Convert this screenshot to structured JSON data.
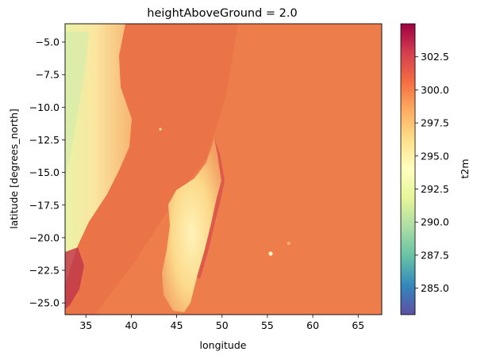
{
  "chart_data": {
    "type": "heatmap",
    "title": "heightAboveGround = 2.0",
    "xlabel": "longitude",
    "ylabel": "latitude [degrees_north]",
    "xlim": [
      32.7,
      67.6
    ],
    "ylim": [
      -25.9,
      -3.6
    ],
    "x_ticks": [
      35,
      40,
      45,
      50,
      55,
      60,
      65
    ],
    "y_ticks": [
      -5.0,
      -7.5,
      -10.0,
      -12.5,
      -15.0,
      -17.5,
      -20.0,
      -22.5,
      -25.0
    ],
    "colorbar": {
      "label": "t2m",
      "colormap": "Spectral_r",
      "range": [
        283.0,
        305.0
      ],
      "ticks": [
        285.0,
        287.5,
        290.0,
        292.5,
        295.0,
        297.5,
        300.0,
        302.5
      ]
    },
    "field_approx": {
      "ocean_background_t2m": 300.5,
      "madagascar_interior_t2m": 295.5,
      "african_coast_interior_t2m": 291.5,
      "warm_coastal_band_t2m": 303.0
    },
    "grid": false
  }
}
